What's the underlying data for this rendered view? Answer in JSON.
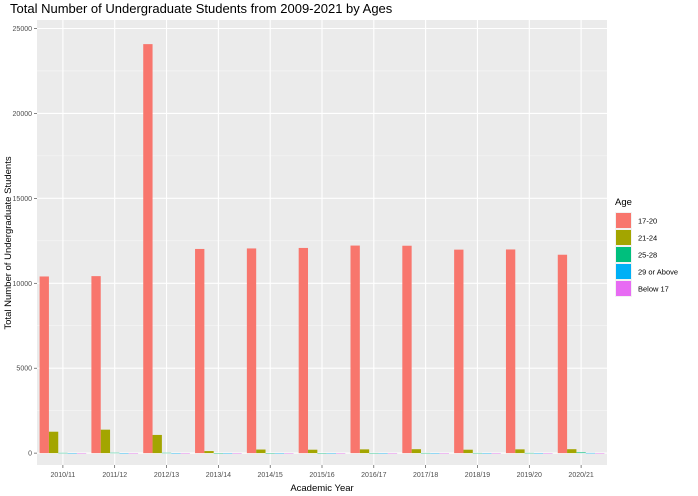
{
  "chart_data": {
    "type": "bar",
    "title": "Total Number of Undergraduate Students from 2009-2021 by Ages",
    "xlabel": "Academic Year",
    "ylabel": "Total Number of Undergraduate Students",
    "ylim": [
      -700,
      25500
    ],
    "yticks": [
      0,
      5000,
      10000,
      15000,
      20000,
      25000
    ],
    "grid": true,
    "legend_position": "right",
    "legend_title": "Age",
    "categories": [
      "2010/11",
      "2011/12",
      "2012/13",
      "2013/14",
      "2014/15",
      "2015/16",
      "2016/17",
      "2017/18",
      "2018/19",
      "2019/20",
      "2020/21"
    ],
    "series": [
      {
        "name": "17-20",
        "color": "#F8766D",
        "values": [
          10400,
          10420,
          24080,
          12020,
          12050,
          12080,
          12220,
          12210,
          11980,
          11990,
          11680
        ]
      },
      {
        "name": "21-24",
        "color": "#A3A500",
        "values": [
          1260,
          1380,
          1070,
          120,
          210,
          200,
          220,
          230,
          200,
          220,
          230
        ]
      },
      {
        "name": "25-28",
        "color": "#00BF7D",
        "values": [
          15,
          20,
          18,
          5,
          5,
          5,
          8,
          10,
          10,
          12,
          40
        ]
      },
      {
        "name": "29 or Above",
        "color": "#00B0F6",
        "values": [
          5,
          6,
          5,
          2,
          2,
          2,
          3,
          3,
          3,
          4,
          10
        ]
      },
      {
        "name": "Below 17",
        "color": "#E76BF3",
        "values": [
          2,
          2,
          2,
          1,
          1,
          1,
          1,
          1,
          1,
          1,
          2
        ]
      }
    ]
  }
}
